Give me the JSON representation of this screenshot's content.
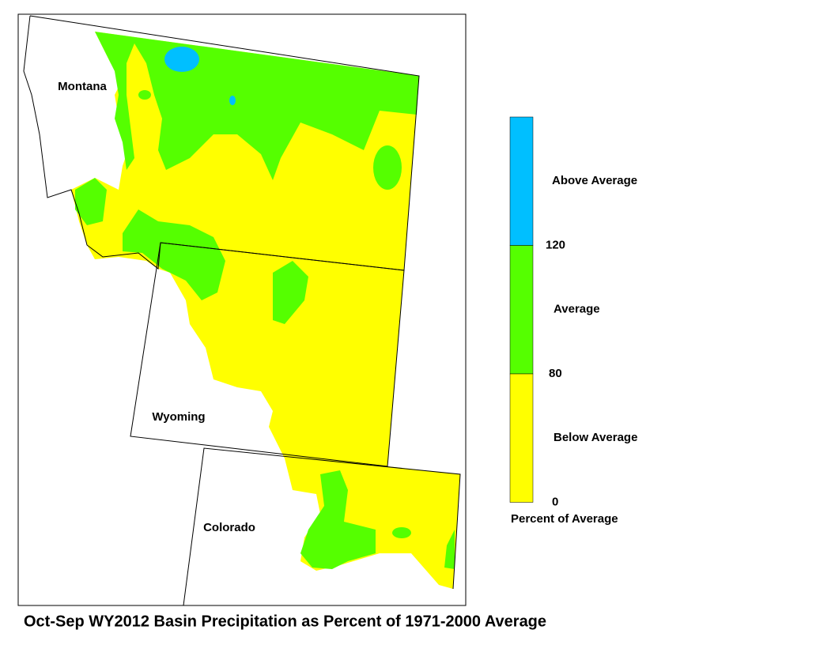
{
  "map": {
    "title": "Oct-Sep WY2012 Basin Precipitation as Percent of 1971-2000 Average",
    "states": [
      {
        "label": "Montana"
      },
      {
        "label": "Wyoming"
      },
      {
        "label": "Colorado"
      }
    ]
  },
  "legend": {
    "caption": "Percent of Average",
    "items": [
      {
        "label": "Above Average",
        "color": "#00bfff"
      },
      {
        "label": "Average",
        "color": "#55ff00"
      },
      {
        "label": "Below Average",
        "color": "#ffff00"
      }
    ],
    "breaks": [
      120,
      80,
      0
    ]
  }
}
